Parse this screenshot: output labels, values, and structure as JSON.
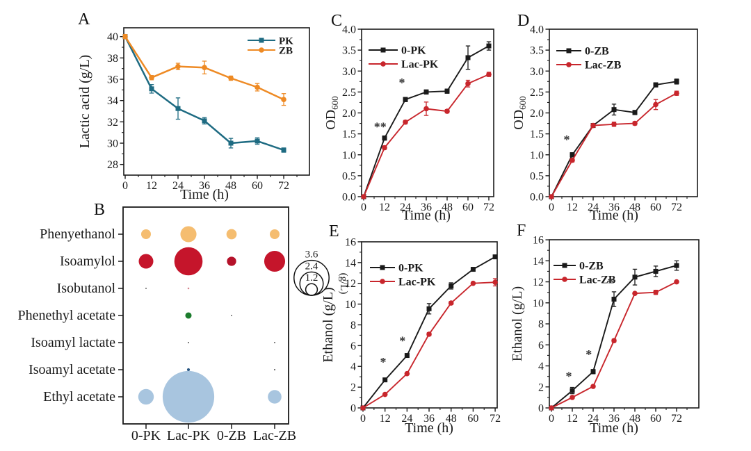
{
  "figure_background": "#ffffff",
  "chart_data": [
    {
      "id": "A",
      "label": "A",
      "type": "line",
      "xlabel": "Time (h)",
      "ylabel": "Lactic acid (g/L)",
      "x": [
        0,
        12,
        24,
        36,
        48,
        60,
        72
      ],
      "xtick_labels": [
        "0",
        "12",
        "24",
        "36",
        "48",
        "60",
        "72"
      ],
      "ytick_values": [
        28,
        30,
        32,
        34,
        36,
        38,
        40
      ],
      "ytick_labels": [
        "28",
        "30",
        "32",
        "34",
        "36",
        "38",
        "40"
      ],
      "ylim": [
        27,
        41
      ],
      "xlim": [
        0,
        84
      ],
      "legend_position": "top-right",
      "series": [
        {
          "name": "PK",
          "color": "#1e6b82",
          "marker": "square",
          "values": [
            40,
            35.1,
            33.25,
            32.1,
            30,
            30.2,
            29.35
          ],
          "errors": [
            0.2,
            0.4,
            1,
            0.3,
            0.45,
            0.3,
            0.2
          ]
        },
        {
          "name": "ZB",
          "color": "#ee8a24",
          "marker": "circle",
          "values": [
            40,
            36.15,
            37.2,
            37.1,
            36.1,
            35.25,
            34.1
          ],
          "errors": [
            0.2,
            0.2,
            0.3,
            0.6,
            0.2,
            0.35,
            0.55
          ]
        }
      ],
      "annotations": []
    },
    {
      "id": "B",
      "label": "B",
      "type": "bubble",
      "rows": [
        "Phenyethanol",
        "Isoamylol",
        "Isobutanol",
        "Phenethyl acetate",
        "Isoamyl lactate",
        "Isoamyl acetate",
        "Ethyl acetate"
      ],
      "columns": [
        "0-PK",
        "Lac-PK",
        "0-ZB",
        "Lac-ZB"
      ],
      "unit": "g/L",
      "values": [
        [
          1.0,
          1.65,
          1.05,
          1.0
        ],
        [
          1.5,
          2.9,
          0.95,
          2.15
        ],
        [
          0.12,
          0.18,
          0,
          0
        ],
        [
          0,
          0.65,
          0.12,
          0
        ],
        [
          0,
          0.15,
          0,
          0.12
        ],
        [
          0,
          0.3,
          0,
          0.12
        ],
        [
          1.6,
          5.3,
          0,
          1.4
        ]
      ],
      "colors": [
        [
          "#f5bd70",
          "#f5bd70",
          "#f5bd70",
          "#f5bd70"
        ],
        [
          "#c5152b",
          "#c5152b",
          "#b5122a",
          "#c5152b"
        ],
        [
          "#6b6b6b",
          "#d4848e",
          null,
          null
        ],
        [
          null,
          "#1c7c2d",
          "#6b6b6b",
          null
        ],
        [
          null,
          "#5a5a5a",
          null,
          "#5a5a5a"
        ],
        [
          null,
          "#2a5783",
          null,
          "#474747"
        ],
        [
          "#a8c5df",
          "#a8c5df",
          null,
          "#a8c5df"
        ]
      ],
      "size_legend": {
        "values": [
          3.6,
          2.4,
          1.2
        ],
        "labels": [
          "3.6",
          "2.4",
          "1.2"
        ],
        "unit_label": "(g/L)"
      }
    },
    {
      "id": "C",
      "label": "C",
      "type": "line",
      "xlabel": "Time (h)",
      "ylabel": "OD",
      "ylabel_sub": "600",
      "x": [
        0,
        12,
        24,
        36,
        48,
        60,
        72
      ],
      "xtick_labels": [
        "0",
        "12",
        "24",
        "36",
        "48",
        "60",
        "72"
      ],
      "ytick_values": [
        0,
        0.5,
        1,
        1.5,
        2,
        2.5,
        3,
        3.5,
        4
      ],
      "ytick_labels": [
        "0.0",
        "0.5",
        "1.0",
        "1.5",
        "2.0",
        "2.5",
        "3.0",
        "3.5",
        "4.0"
      ],
      "ylim": [
        0,
        4
      ],
      "xlim": [
        0,
        76
      ],
      "legend_position": "top-left",
      "series": [
        {
          "name": "0-PK",
          "color": "#1a1a1a",
          "marker": "square",
          "values": [
            0,
            1.4,
            2.32,
            2.5,
            2.52,
            3.32,
            3.6
          ],
          "errors": [
            0,
            0.05,
            0.05,
            0.05,
            0.05,
            0.28,
            0.1
          ]
        },
        {
          "name": "Lac-PK",
          "color": "#c8262c",
          "marker": "circle",
          "values": [
            0,
            1.17,
            1.78,
            2.1,
            2.04,
            2.7,
            2.92
          ],
          "errors": [
            0,
            0.04,
            0.04,
            0.16,
            0.04,
            0.08,
            0.05
          ]
        }
      ],
      "annotations": [
        {
          "t": "**",
          "x": 9.5,
          "y": 1.57
        },
        {
          "t": "*",
          "x": 22,
          "y": 2.62
        }
      ]
    },
    {
      "id": "D",
      "label": "D",
      "type": "line",
      "xlabel": "Time (h)",
      "ylabel": "OD",
      "ylabel_sub": "600",
      "x": [
        0,
        12,
        24,
        36,
        48,
        60,
        72
      ],
      "xtick_labels": [
        "0",
        "12",
        "24",
        "36",
        "48",
        "60",
        "72"
      ],
      "ytick_values": [
        0,
        0.5,
        1,
        1.5,
        2,
        2.5,
        3,
        3.5,
        4
      ],
      "ytick_labels": [
        "0.0",
        "0.5",
        "1.0",
        "1.5",
        "2.0",
        "2.5",
        "3.0",
        "3.5",
        "4.0"
      ],
      "ylim": [
        0,
        4
      ],
      "xlim": [
        0,
        84
      ],
      "legend_position": "top-left",
      "series": [
        {
          "name": "0-ZB",
          "color": "#1a1a1a",
          "marker": "square",
          "values": [
            0,
            1,
            1.7,
            2.08,
            2.01,
            2.67,
            2.75
          ],
          "errors": [
            0,
            0.05,
            0.04,
            0.13,
            0.05,
            0.05,
            0.06
          ]
        },
        {
          "name": "Lac-ZB",
          "color": "#c8262c",
          "marker": "circle",
          "values": [
            0,
            0.87,
            1.7,
            1.73,
            1.75,
            2.2,
            2.47
          ],
          "errors": [
            0,
            0.04,
            0.04,
            0.05,
            0.04,
            0.12,
            0.05
          ]
        }
      ],
      "annotations": [
        {
          "t": "*",
          "x": 8.8,
          "y": 1.26
        }
      ]
    },
    {
      "id": "E",
      "label": "E",
      "type": "line",
      "xlabel": "Time (h)",
      "ylabel": "Ethanol (g/L)",
      "x": [
        0,
        12,
        24,
        36,
        48,
        60,
        72
      ],
      "xtick_labels": [
        "0",
        "12",
        "24",
        "36",
        "48",
        "60",
        "72"
      ],
      "ytick_values": [
        0,
        2,
        4,
        6,
        8,
        10,
        12,
        14,
        16
      ],
      "ytick_labels": [
        "0",
        "2",
        "4",
        "6",
        "8",
        "10",
        "12",
        "14",
        "16"
      ],
      "ylim": [
        0,
        16
      ],
      "xlim": [
        0,
        76
      ],
      "legend_position": "top-left",
      "series": [
        {
          "name": "0-PK",
          "color": "#1a1a1a",
          "marker": "square",
          "values": [
            0,
            2.7,
            5.05,
            9.55,
            11.75,
            13.35,
            14.55
          ],
          "errors": [
            0,
            0.15,
            0.15,
            0.5,
            0.3,
            0.15,
            0.15
          ]
        },
        {
          "name": "Lac-PK",
          "color": "#c8262c",
          "marker": "circle",
          "values": [
            0,
            1.3,
            3.3,
            7.1,
            10.1,
            12,
            12.1
          ],
          "errors": [
            0,
            0.1,
            0.1,
            0.15,
            0.15,
            0.1,
            0.35
          ]
        }
      ],
      "annotations": [
        {
          "t": "*",
          "x": 11,
          "y": 4.0
        },
        {
          "t": "*",
          "x": 21.5,
          "y": 6.05
        }
      ]
    },
    {
      "id": "F",
      "label": "F",
      "type": "line",
      "xlabel": "Time (h)",
      "ylabel": "Ethanol (g/L)",
      "x": [
        0,
        12,
        24,
        36,
        48,
        60,
        72
      ],
      "xtick_labels": [
        "0",
        "12",
        "24",
        "36",
        "48",
        "60",
        "72"
      ],
      "ytick_values": [
        0,
        2,
        4,
        6,
        8,
        10,
        12,
        14,
        16
      ],
      "ytick_labels": [
        "0",
        "2",
        "4",
        "6",
        "8",
        "10",
        "12",
        "14",
        "16"
      ],
      "ylim": [
        0,
        16
      ],
      "xlim": [
        0,
        84
      ],
      "legend_position": "top-left",
      "series": [
        {
          "name": "0-ZB",
          "color": "#1a1a1a",
          "marker": "square",
          "values": [
            0,
            1.65,
            3.45,
            10.35,
            12.45,
            13,
            13.55
          ],
          "errors": [
            0,
            0.3,
            0.2,
            0.7,
            0.75,
            0.5,
            0.45
          ]
        },
        {
          "name": "Lac-ZB",
          "color": "#c8262c",
          "marker": "circle",
          "values": [
            0,
            1,
            2.05,
            6.4,
            10.9,
            11,
            12
          ],
          "errors": [
            0,
            0.1,
            0.1,
            0.15,
            0.1,
            0.2,
            0.1
          ]
        }
      ],
      "annotations": [
        {
          "t": "*",
          "x": 10,
          "y": 2.6
        },
        {
          "t": "*",
          "x": 21.5,
          "y": 4.7
        },
        {
          "t": "*",
          "x": 34,
          "y": 11.55
        }
      ]
    }
  ]
}
